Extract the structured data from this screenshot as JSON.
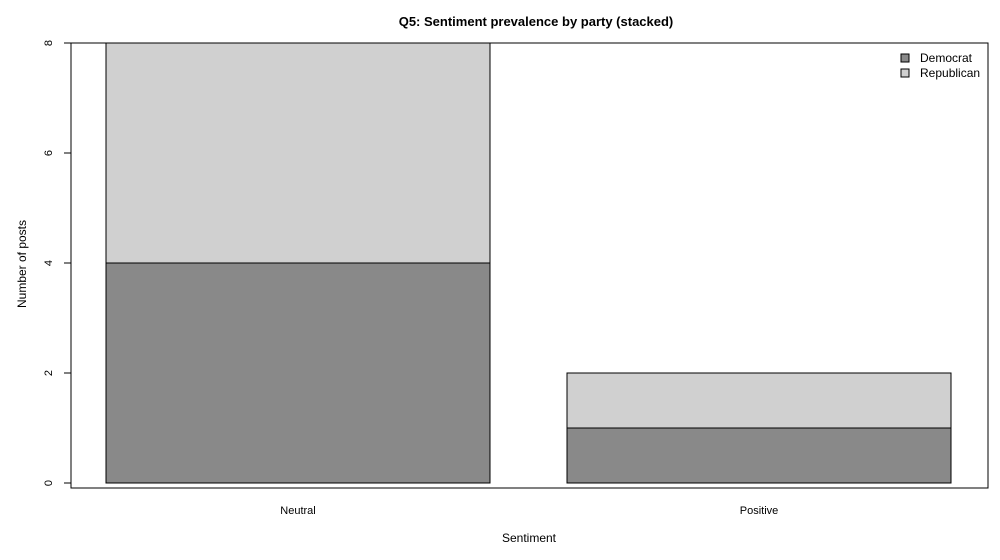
{
  "chart_data": {
    "type": "bar",
    "stacked": true,
    "title": "Q5: Sentiment prevalence by party (stacked)",
    "xlabel": "Sentiment",
    "ylabel": "Number of posts",
    "categories": [
      "Neutral",
      "Positive"
    ],
    "series": [
      {
        "name": "Democrat",
        "values": [
          4,
          1
        ],
        "color": "#898989"
      },
      {
        "name": "Republican",
        "values": [
          4,
          1
        ],
        "color": "#d0d0d0"
      }
    ],
    "ylim": [
      0,
      8
    ],
    "yticks": [
      0,
      2,
      4,
      6,
      8
    ],
    "grid": false,
    "legend_position": "top-right"
  }
}
